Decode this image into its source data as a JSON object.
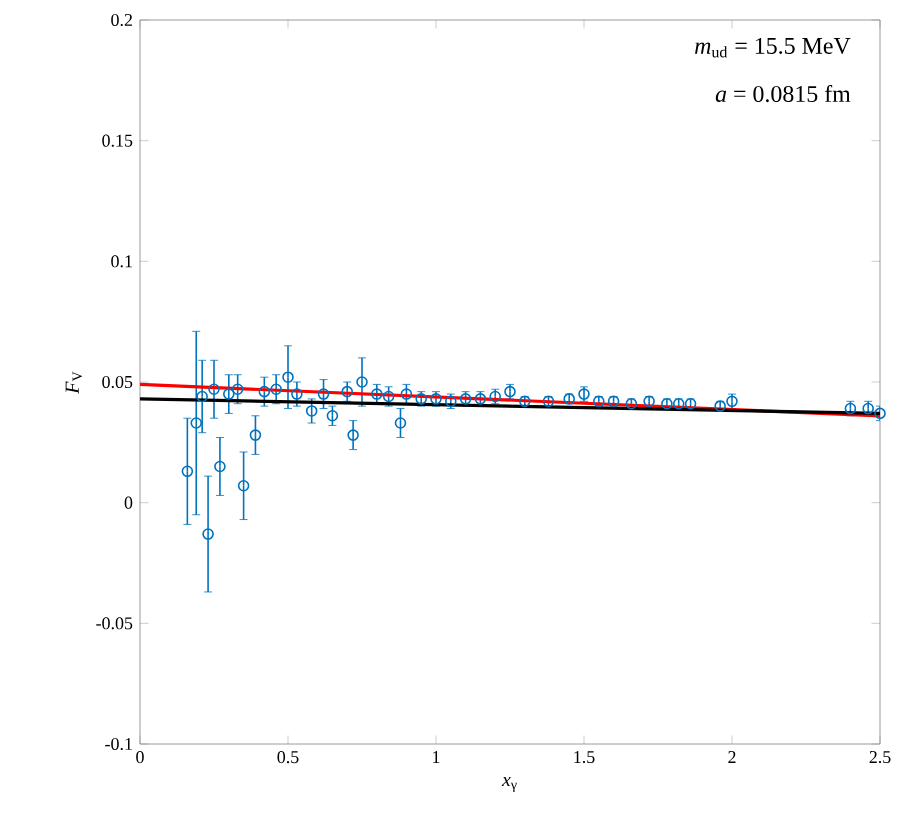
{
  "chart_data": {
    "type": "scatter",
    "xlabel": "*x*$_{γ}$",
    "ylabel": "*F*$_{V}$",
    "annotations": [
      "*m*$_{ud}$ = 15.5 MeV",
      "*a* = 0.0815 fm"
    ],
    "xlim": [
      0,
      2.5
    ],
    "ylim": [
      -0.1,
      0.2
    ],
    "xticks": [
      0,
      0.5,
      1,
      1.5,
      2,
      2.5
    ],
    "yticks": [
      -0.1,
      -0.05,
      0,
      0.05,
      0.1,
      0.15,
      0.2
    ],
    "series": [
      {
        "color": "#0072bd",
        "marker": "circle",
        "x": [
          0.16,
          0.19,
          0.21,
          0.23,
          0.25,
          0.27,
          0.3,
          0.33,
          0.35,
          0.39,
          0.42,
          0.46,
          0.5,
          0.53,
          0.58,
          0.62,
          0.65,
          0.7,
          0.72,
          0.75,
          0.8,
          0.84,
          0.88,
          0.9,
          0.95,
          1.0,
          1.05,
          1.1,
          1.15,
          1.2,
          1.25,
          1.3,
          1.38,
          1.45,
          1.5,
          1.55,
          1.6,
          1.66,
          1.72,
          1.78,
          1.82,
          1.86,
          1.96,
          2.0,
          2.4,
          2.46,
          2.5
        ],
        "values": [
          0.013,
          0.033,
          0.044,
          -0.013,
          0.047,
          0.015,
          0.045,
          0.047,
          0.007,
          0.028,
          0.046,
          0.047,
          0.052,
          0.045,
          0.038,
          0.045,
          0.036,
          0.046,
          0.028,
          0.05,
          0.045,
          0.044,
          0.033,
          0.045,
          0.043,
          0.043,
          0.042,
          0.043,
          0.043,
          0.044,
          0.046,
          0.042,
          0.042,
          0.043,
          0.045,
          0.042,
          0.042,
          0.041,
          0.042,
          0.041,
          0.041,
          0.041,
          0.04,
          0.042,
          0.039,
          0.039,
          0.037
        ],
        "errors": [
          0.022,
          0.038,
          0.015,
          0.024,
          0.012,
          0.012,
          0.008,
          0.006,
          0.014,
          0.008,
          0.006,
          0.006,
          0.013,
          0.005,
          0.005,
          0.006,
          0.004,
          0.004,
          0.006,
          0.01,
          0.004,
          0.004,
          0.006,
          0.004,
          0.003,
          0.003,
          0.003,
          0.003,
          0.003,
          0.003,
          0.003,
          0.002,
          0.002,
          0.002,
          0.003,
          0.002,
          0.002,
          0.002,
          0.002,
          0.002,
          0.002,
          0.002,
          0.002,
          0.003,
          0.003,
          0.003,
          0.003
        ]
      },
      {
        "type": "line",
        "color": "#ff0000",
        "marker": "none",
        "x": [
          0,
          2.5
        ],
        "values": [
          0.049,
          0.036
        ]
      },
      {
        "type": "line",
        "color": "#000000",
        "marker": "none",
        "x": [
          0,
          2.5
        ],
        "values": [
          0.043,
          0.037
        ]
      }
    ]
  }
}
